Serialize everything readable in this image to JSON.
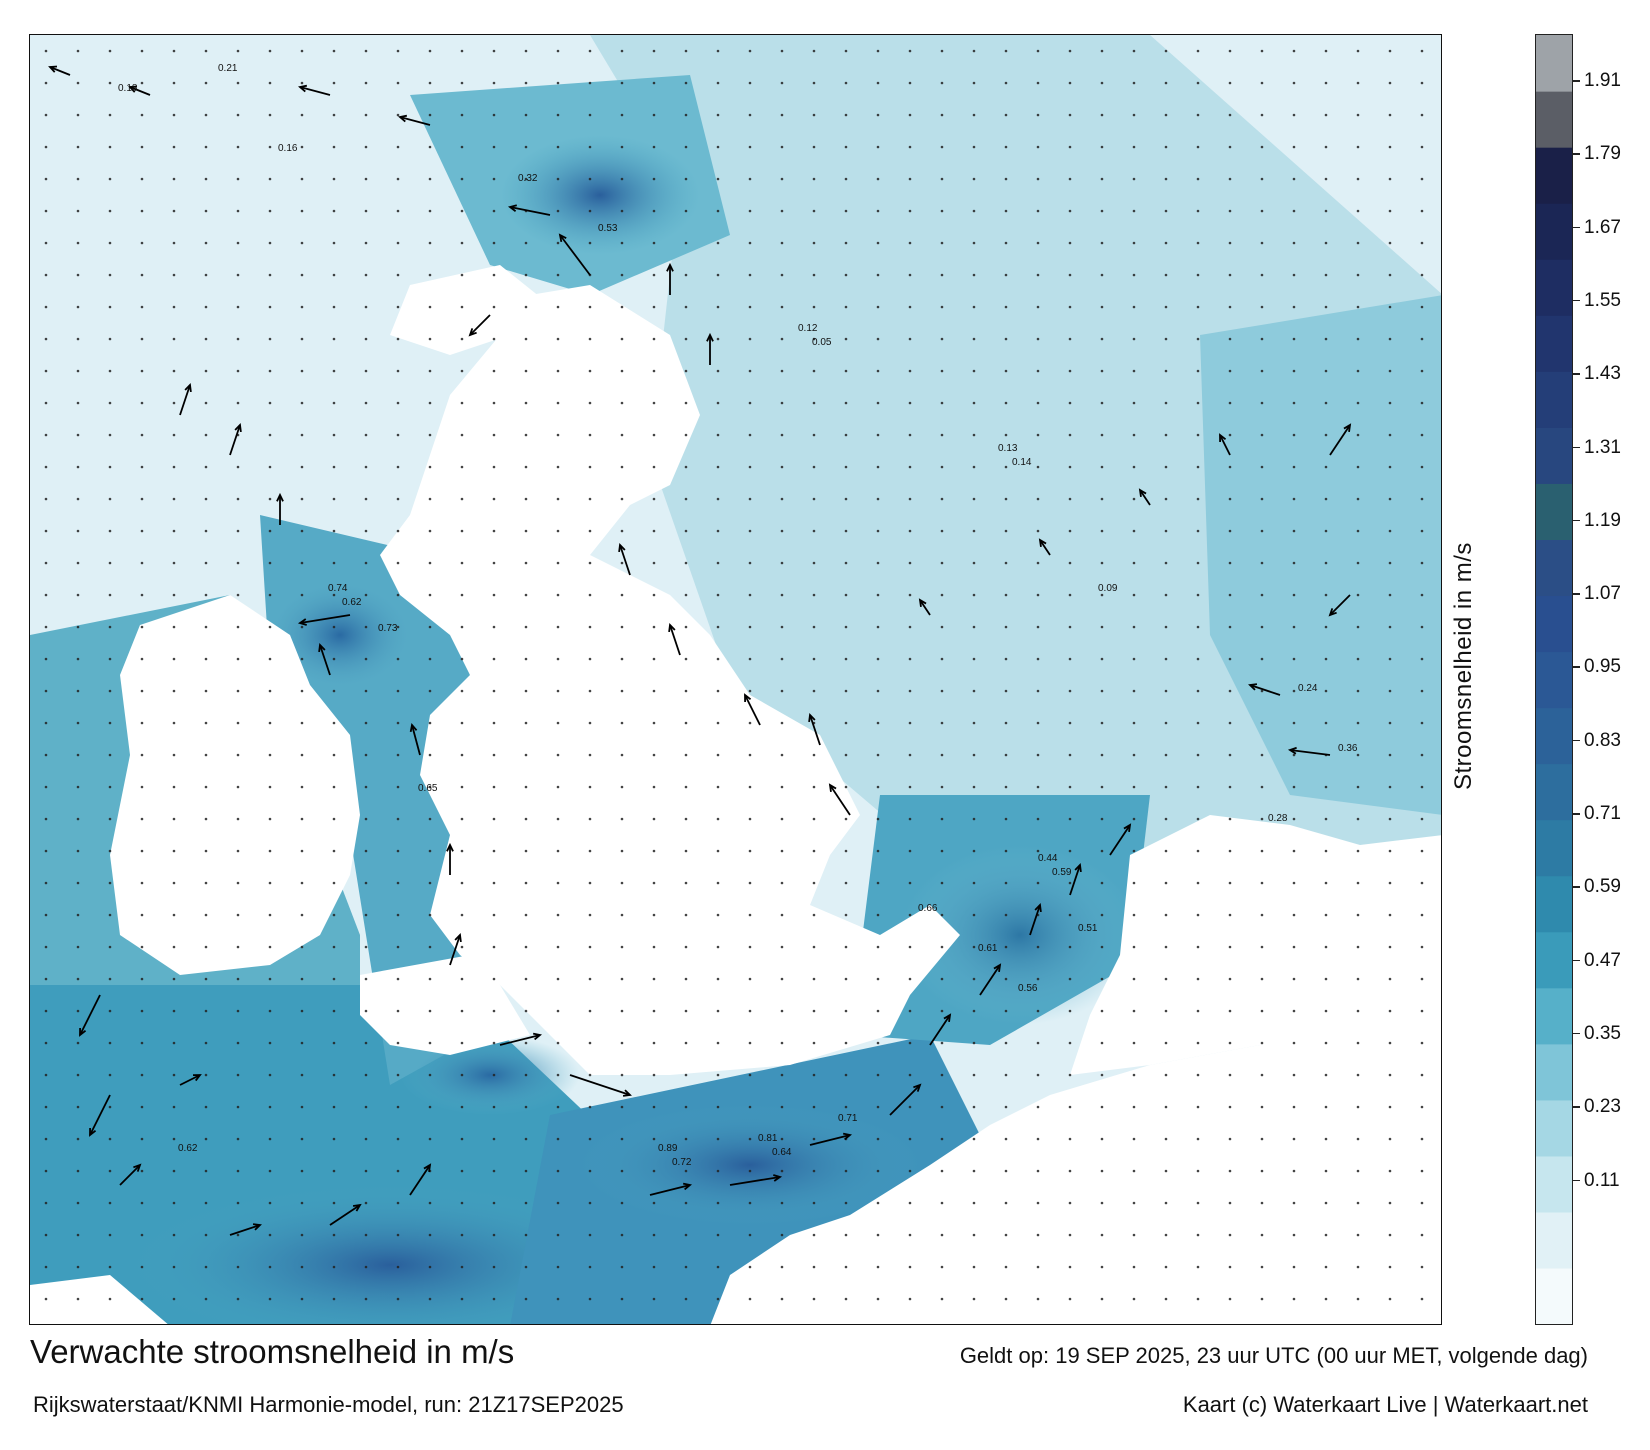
{
  "map": {
    "variable": "Stroomsnelheid",
    "unit": "m/s",
    "sea_color_low": "#eaf6fa",
    "sea_color_high": "#1f5a92",
    "land_color": "#ffffff",
    "arrow_color": "#000000",
    "value_labels": [
      {
        "text": "0.18",
        "region": "north"
      },
      {
        "text": "0.16",
        "region": "north"
      },
      {
        "text": "0.21",
        "region": "north"
      },
      {
        "text": "0.32",
        "region": "north-channel"
      },
      {
        "text": "0.53",
        "region": "north-channel"
      },
      {
        "text": "0.74",
        "region": "irish-sea"
      },
      {
        "text": "0.73",
        "region": "irish-sea"
      },
      {
        "text": "0.65",
        "region": "irish-sea"
      },
      {
        "text": "0.62",
        "region": "irish-sea"
      },
      {
        "text": "0.66",
        "region": "north-sea-south"
      },
      {
        "text": "0.61",
        "region": "north-sea-south"
      },
      {
        "text": "0.89",
        "region": "english-channel"
      },
      {
        "text": "0.81",
        "region": "english-channel"
      },
      {
        "text": "0.71",
        "region": "english-channel"
      },
      {
        "text": "0.72",
        "region": "english-channel"
      },
      {
        "text": "0.64",
        "region": "english-channel"
      },
      {
        "text": "0.62",
        "region": "celtic-sea"
      },
      {
        "text": "0.12",
        "region": "north-sea"
      },
      {
        "text": "0.13",
        "region": "north-sea"
      },
      {
        "text": "0.09",
        "region": "north-sea"
      },
      {
        "text": "0.05",
        "region": "north-sea"
      },
      {
        "text": "0.14",
        "region": "north-sea"
      },
      {
        "text": "0.24",
        "region": "wadden"
      },
      {
        "text": "0.36",
        "region": "wadden"
      },
      {
        "text": "0.28",
        "region": "wadden"
      },
      {
        "text": "0.44",
        "region": "dover-strait"
      },
      {
        "text": "0.51",
        "region": "dover-strait"
      },
      {
        "text": "0.56",
        "region": "dover-strait"
      },
      {
        "text": "0.59",
        "region": "dover-strait"
      }
    ]
  },
  "colorbar": {
    "label": "Stroomsnelheid in m/s",
    "ticks": [
      "1.91",
      "1.79",
      "1.67",
      "1.55",
      "1.43",
      "1.31",
      "1.19",
      "1.07",
      "0.95",
      "0.83",
      "0.71",
      "0.59",
      "0.47",
      "0.35",
      "0.23",
      "0.11"
    ],
    "colors": [
      "#f4fafc",
      "#e1f1f6",
      "#c6e6ee",
      "#a5d7e4",
      "#7fc5d8",
      "#56b0c9",
      "#3a9bba",
      "#2f8aad",
      "#2d7ba4",
      "#2d6e9e",
      "#2c6299",
      "#2b5895",
      "#294f90",
      "#2b4e86",
      "#2a6070",
      "#28477f",
      "#243e78",
      "#21356e",
      "#1e2d62",
      "#1b2655",
      "#1a2048",
      "#5b5e66",
      "#9ea3a8"
    ]
  },
  "footer": {
    "title": "Verwachte stroomsnelheid in m/s",
    "valid_time": "Geldt op: 19 SEP 2025, 23 uur UTC (00 uur MET, volgende dag)",
    "model_run": "Rijkswaterstaat/KNMI Harmonie-model, run: 21Z17SEP2025",
    "credit": "Kaart (c) Waterkaart Live | Waterkaart.net"
  }
}
